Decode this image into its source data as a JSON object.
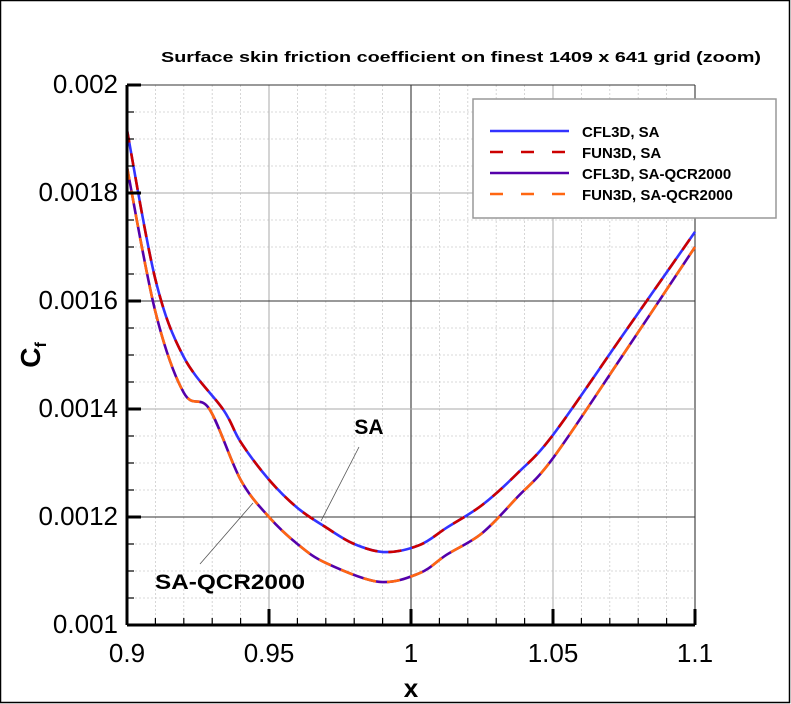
{
  "chart_data": {
    "type": "line",
    "title": "Surface skin friction coefficient on finest 1409 x 641 grid (zoom)",
    "xlabel": "x",
    "ylabel": "C",
    "ylabel_subscript": "f",
    "xlim": [
      0.9,
      1.1
    ],
    "ylim": [
      0.001,
      0.002
    ],
    "x_ticks": [
      "0.9",
      "0.95",
      "1",
      "1.05",
      "1.1"
    ],
    "y_ticks": [
      "0.001",
      "0.0012",
      "0.0014",
      "0.0016",
      "0.0018",
      "0.002"
    ],
    "x_major_step": 0.05,
    "x_minor_step": 0.01,
    "y_major_step": 0.0002,
    "y_minor_step": 5e-05,
    "grid": true,
    "legend_placement": "top-right",
    "annotations": [
      {
        "text": "SA",
        "points_to": [
          0.968,
          0.001185
        ]
      },
      {
        "text": "SA-QCR2000",
        "points_to": [
          0.9445,
          0.00124
        ]
      }
    ],
    "series": [
      {
        "name": "CFL3D, SA",
        "color": "#3333ff",
        "dash": "solid",
        "x": [
          0.9,
          0.91,
          0.92,
          0.934,
          0.94,
          0.95,
          0.96,
          0.97,
          0.98,
          0.991,
          1.003,
          1.0125,
          1.025,
          1.0375,
          1.05,
          1.075,
          1.1
        ],
        "y": [
          0.001917,
          0.00164,
          0.001496,
          0.001398,
          0.001339,
          0.001269,
          0.001217,
          0.001181,
          0.00115,
          0.001135,
          0.001148,
          0.00118,
          0.001222,
          0.001281,
          0.001352,
          0.00154,
          0.001728
        ]
      },
      {
        "name": "FUN3D, SA",
        "color": "#cc0000",
        "dash": "dashed",
        "x": [
          0.9,
          0.91,
          0.92,
          0.934,
          0.94,
          0.95,
          0.96,
          0.97,
          0.98,
          0.991,
          1.003,
          1.0125,
          1.025,
          1.0375,
          1.05,
          1.075,
          1.1
        ],
        "y": [
          0.001917,
          0.00164,
          0.001496,
          0.001398,
          0.001339,
          0.001269,
          0.001217,
          0.001181,
          0.00115,
          0.001135,
          0.001148,
          0.00118,
          0.001222,
          0.001281,
          0.001352,
          0.00154,
          0.001728
        ]
      },
      {
        "name": "CFL3D, SA-QCR2000",
        "color": "#5500aa",
        "dash": "solid",
        "x": [
          0.9,
          0.91,
          0.92,
          0.929,
          0.94,
          0.95,
          0.96,
          0.97,
          0.9887,
          1.003,
          1.0125,
          1.025,
          1.0375,
          1.05,
          1.075,
          1.1
        ],
        "y": [
          0.001848,
          0.00158,
          0.00143,
          0.0014,
          0.001269,
          0.0012,
          0.00115,
          0.001115,
          0.00108,
          0.001096,
          0.00113,
          0.00117,
          0.001237,
          0.001309,
          0.001503,
          0.0017
        ]
      },
      {
        "name": "FUN3D, SA-QCR2000",
        "color": "#ff6611",
        "dash": "dashed",
        "x": [
          0.9,
          0.91,
          0.92,
          0.929,
          0.94,
          0.95,
          0.96,
          0.97,
          0.9887,
          1.003,
          1.0125,
          1.025,
          1.0375,
          1.05,
          1.075,
          1.1
        ],
        "y": [
          0.001848,
          0.00158,
          0.00143,
          0.0014,
          0.001269,
          0.0012,
          0.00115,
          0.001115,
          0.00108,
          0.001096,
          0.00113,
          0.00117,
          0.001237,
          0.001309,
          0.001503,
          0.0017
        ]
      }
    ]
  }
}
